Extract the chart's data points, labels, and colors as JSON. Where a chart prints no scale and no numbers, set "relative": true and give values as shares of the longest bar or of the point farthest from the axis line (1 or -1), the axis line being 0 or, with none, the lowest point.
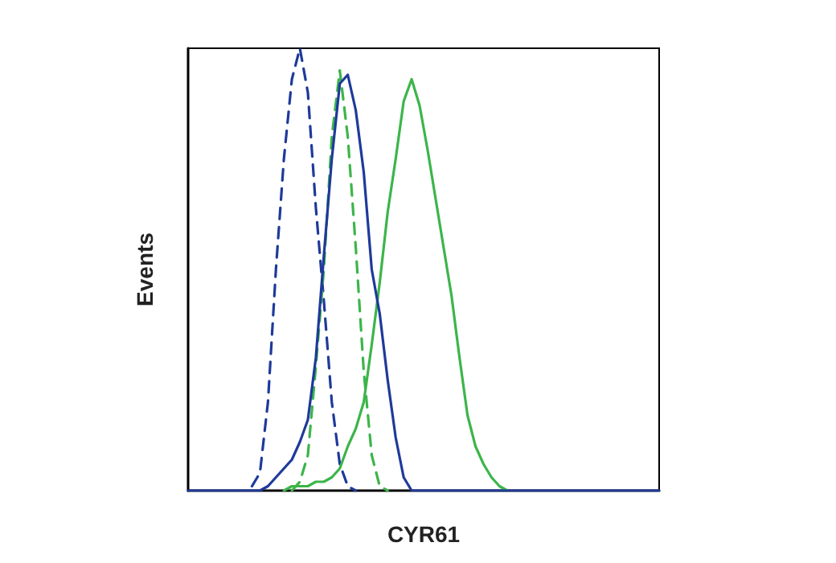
{
  "chart_data": {
    "type": "line",
    "relative": true,
    "xlabel": "CYR61",
    "ylabel": "Events",
    "grid": false,
    "categories": [
      null,
      null,
      null,
      null,
      null,
      null,
      null,
      null,
      null,
      null,
      null,
      null,
      null,
      null,
      null,
      null,
      null,
      null,
      null,
      null,
      null,
      null,
      null,
      null,
      null,
      null,
      null,
      null,
      null,
      null,
      null,
      null,
      null,
      null,
      null,
      null,
      null,
      null,
      null,
      null,
      null,
      null,
      null,
      null,
      null,
      null,
      null,
      null,
      null,
      null,
      null,
      null,
      null,
      null,
      null,
      null,
      null,
      null,
      null,
      null
    ],
    "series": [
      {
        "color": "#1f3a9a",
        "line_style": "dashed",
        "values": [
          null,
          null,
          null,
          null,
          null,
          null,
          null,
          null,
          0.01,
          0.04,
          0.2,
          0.5,
          0.75,
          0.93,
          1.0,
          0.9,
          0.64,
          0.43,
          0.2,
          0.06,
          0.01,
          0,
          null,
          null,
          null,
          null,
          null,
          null,
          null,
          null,
          null,
          null,
          null,
          null,
          null,
          null,
          null,
          null,
          null,
          null,
          null,
          null,
          null,
          null,
          null,
          null,
          null,
          null,
          null,
          null,
          null,
          null,
          null,
          null,
          null,
          null,
          null,
          null,
          null,
          null
        ]
      },
      {
        "color": "#3cb54a",
        "line_style": "dashed",
        "values": [
          null,
          null,
          null,
          null,
          null,
          null,
          null,
          null,
          null,
          null,
          null,
          null,
          null,
          0,
          0.02,
          0.08,
          0.28,
          0.5,
          0.8,
          0.95,
          0.8,
          0.55,
          0.27,
          0.08,
          0.01,
          0,
          null,
          null,
          null,
          null,
          null,
          null,
          null,
          null,
          null,
          null,
          null,
          null,
          null,
          null,
          null,
          null,
          null,
          null,
          null,
          null,
          null,
          null,
          null,
          null,
          null,
          null,
          null,
          null,
          null,
          null,
          null,
          null,
          null,
          null
        ]
      },
      {
        "color": "#3cb54a",
        "line_style": "solid",
        "values": [
          null,
          null,
          null,
          null,
          null,
          null,
          null,
          null,
          null,
          null,
          null,
          null,
          0,
          0.01,
          0.01,
          0.01,
          0.02,
          0.02,
          0.03,
          0.05,
          0.1,
          0.14,
          0.2,
          0.33,
          0.47,
          0.63,
          0.75,
          0.88,
          0.93,
          0.87,
          0.77,
          0.66,
          0.55,
          0.44,
          0.3,
          0.17,
          0.1,
          0.06,
          0.03,
          0.01,
          0,
          null,
          null,
          null,
          null,
          null,
          null,
          null,
          null,
          null,
          null,
          null,
          null,
          null,
          null,
          null,
          null,
          null,
          null,
          null
        ]
      },
      {
        "color": "#1f3a9a",
        "line_style": "solid",
        "values": [
          0,
          0,
          0,
          0,
          0,
          0,
          0,
          0,
          0,
          0,
          0.01,
          0.03,
          0.05,
          0.07,
          0.11,
          0.16,
          0.3,
          0.53,
          0.75,
          0.92,
          0.94,
          0.86,
          0.72,
          0.5,
          0.4,
          0.25,
          0.12,
          0.03,
          0,
          0,
          0,
          0,
          0,
          0,
          0,
          0,
          0,
          0,
          0,
          0,
          0,
          0,
          0,
          0,
          0,
          0,
          0,
          0,
          0,
          0,
          0,
          0,
          0,
          0,
          0,
          0,
          0,
          0,
          0,
          0
        ]
      }
    ]
  }
}
